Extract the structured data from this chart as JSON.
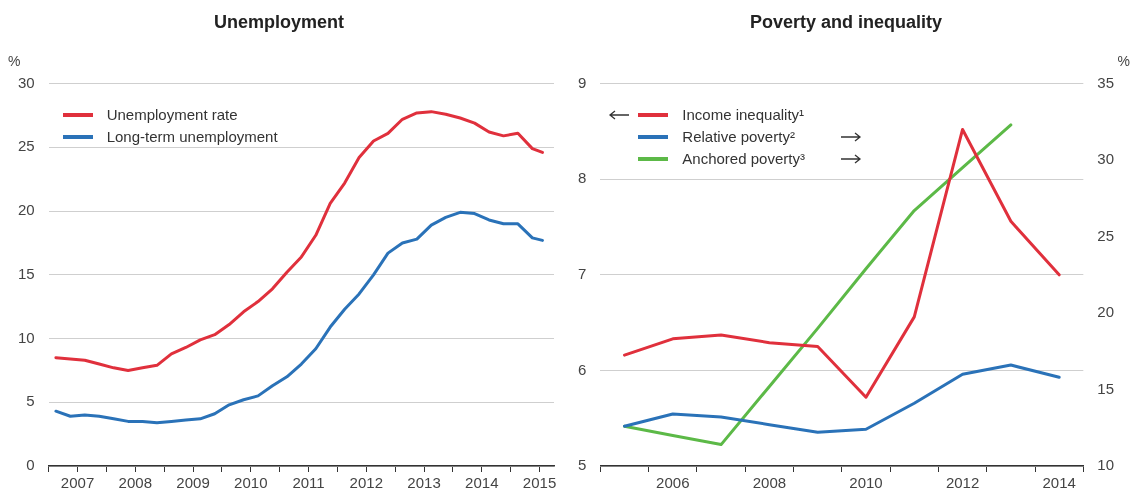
{
  "chart_data": [
    {
      "type": "line",
      "title": "Unemployment",
      "ylabel": "%",
      "x": [
        2007.125,
        2007.375,
        2007.625,
        2007.875,
        2008.125,
        2008.375,
        2008.625,
        2008.875,
        2009.125,
        2009.375,
        2009.625,
        2009.875,
        2010.125,
        2010.375,
        2010.625,
        2010.875,
        2011.125,
        2011.375,
        2011.625,
        2011.875,
        2012.125,
        2012.375,
        2012.625,
        2012.875,
        2013.125,
        2013.375,
        2013.625,
        2013.875,
        2014.125,
        2014.375,
        2014.625,
        2014.875,
        2015.125,
        2015.375,
        2015.55
      ],
      "series": [
        {
          "name": "Unemployment rate",
          "color": "#e0303c",
          "values": [
            8.5,
            8.4,
            8.3,
            8.0,
            7.7,
            7.5,
            7.7,
            7.9,
            8.8,
            9.3,
            9.9,
            10.3,
            11.1,
            12.1,
            12.9,
            13.9,
            15.2,
            16.4,
            18.1,
            20.6,
            22.2,
            24.2,
            25.5,
            26.1,
            27.2,
            27.7,
            27.8,
            27.6,
            27.3,
            26.9,
            26.2,
            25.9,
            26.1,
            24.9,
            24.6
          ]
        },
        {
          "name": "Long-term unemployment",
          "color": "#2a72b8",
          "values": [
            4.3,
            3.9,
            4.0,
            3.9,
            3.7,
            3.5,
            3.5,
            3.4,
            3.5,
            3.6,
            3.7,
            4.1,
            4.8,
            5.2,
            5.5,
            6.3,
            7.0,
            8.0,
            9.2,
            10.9,
            12.3,
            13.5,
            15.0,
            16.7,
            17.5,
            17.8,
            18.9,
            19.5,
            19.9,
            19.8,
            19.3,
            19.0,
            19.0,
            17.9,
            17.7
          ]
        }
      ],
      "xlim": [
        2007,
        2015.75
      ],
      "xticks": [
        {
          "value": 2007,
          "label": null
        },
        {
          "value": 2007.5,
          "label": "2007"
        },
        {
          "value": 2008,
          "label": null
        },
        {
          "value": 2008.5,
          "label": "2008"
        },
        {
          "value": 2009,
          "label": null
        },
        {
          "value": 2009.5,
          "label": "2009"
        },
        {
          "value": 2010,
          "label": null
        },
        {
          "value": 2010.5,
          "label": "2010"
        },
        {
          "value": 2011,
          "label": null
        },
        {
          "value": 2011.5,
          "label": "2011"
        },
        {
          "value": 2012,
          "label": null
        },
        {
          "value": 2012.5,
          "label": "2012"
        },
        {
          "value": 2013,
          "label": null
        },
        {
          "value": 2013.5,
          "label": "2013"
        },
        {
          "value": 2014,
          "label": null
        },
        {
          "value": 2014.5,
          "label": "2014"
        },
        {
          "value": 2015,
          "label": null
        },
        {
          "value": 2015.5,
          "label": "2015"
        }
      ],
      "ylim": [
        0,
        30
      ],
      "yticks": [
        0,
        5,
        10,
        15,
        20,
        25,
        30
      ],
      "grid": "y",
      "legend": "top left",
      "marker": "none",
      "line_style": "solid"
    },
    {
      "type": "line",
      "title": "Poverty and inequality",
      "y2label": "%",
      "categories": [
        null,
        "2006",
        null,
        "2008",
        null,
        "2010",
        null,
        "2012",
        null,
        "2014"
      ],
      "series": [
        {
          "name": "Income inequality¹",
          "color": "#e0303c",
          "axis": "y",
          "values": [
            6.16,
            6.33,
            6.37,
            6.29,
            6.25,
            5.72,
            6.56,
            8.52,
            7.56,
            7.0
          ]
        },
        {
          "name": "Relative poverty²",
          "color": "#2a72b8",
          "axis": "y2",
          "values": [
            12.6,
            13.4,
            13.2,
            12.7,
            12.2,
            12.4,
            14.1,
            16.0,
            16.6,
            15.8
          ]
        },
        {
          "name": "Anchored poverty³",
          "color": "#5cb947",
          "axis": "y2",
          "values": [
            12.6,
            12.0,
            11.4,
            15.2,
            19.0,
            22.9,
            26.7,
            29.5,
            32.3,
            null
          ]
        }
      ],
      "ylim": [
        5,
        9
      ],
      "yticks": [
        5,
        6,
        7,
        8,
        9
      ],
      "y2lim": [
        10,
        35
      ],
      "y2ticks": [
        10,
        15,
        20,
        25,
        30,
        35
      ],
      "grid": "y",
      "legend": "top left",
      "marker": "none",
      "line_style": "solid"
    }
  ]
}
